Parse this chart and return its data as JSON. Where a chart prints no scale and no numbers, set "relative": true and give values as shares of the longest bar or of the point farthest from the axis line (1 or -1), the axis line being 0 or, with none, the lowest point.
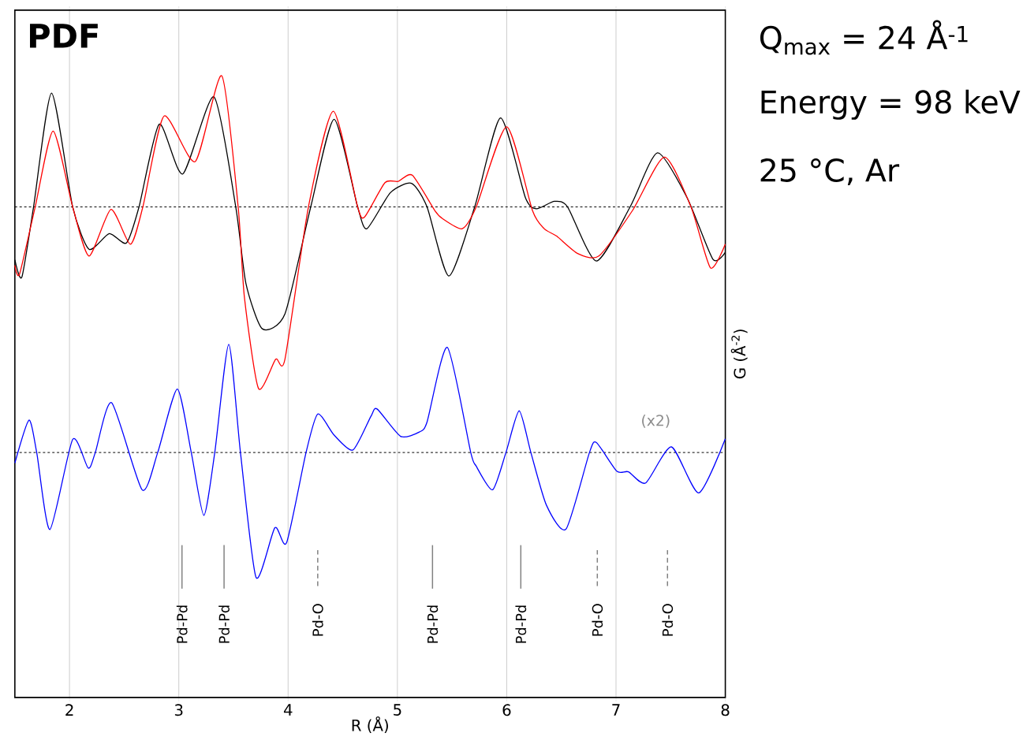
{
  "chart_data": {
    "type": "line",
    "title": "PDF",
    "xlabel": "R (Å)",
    "ylabel": "G (Å$^{-2}$)",
    "relative": true,
    "xlim": [
      1.5,
      8
    ],
    "xticks": [
      2,
      3,
      4,
      5,
      6,
      7,
      8
    ],
    "grid": "x",
    "annotations": [
      "Q$_{max}$ = 24 Å$^{-1}$",
      "Energy = 98 keV",
      "25 °C, Ar",
      "(x2)"
    ],
    "ref_lines": [
      {
        "axis": "y",
        "value": 0.789,
        "color": "#000000",
        "line_style": "dashed"
      },
      {
        "axis": "y",
        "value": 0.394,
        "color": "#000000",
        "line_style": "dashed"
      }
    ],
    "series": [
      {
        "color": "#000000",
        "x": [
          1.5,
          1.564,
          1.671,
          1.836,
          2.029,
          2.179,
          2.364,
          2.521,
          2.636,
          2.821,
          3.036,
          3.321,
          3.521,
          3.614,
          3.764,
          3.971,
          4.207,
          4.421,
          4.636,
          4.721,
          4.936,
          5.129,
          5.271,
          5.471,
          5.707,
          5.943,
          6.171,
          6.271,
          6.436,
          6.557,
          6.821,
          7.129,
          7.379,
          7.65,
          7.886,
          8.0
        ],
        "values": [
          0.704,
          0.676,
          0.789,
          0.972,
          0.789,
          0.721,
          0.746,
          0.731,
          0.789,
          0.922,
          0.842,
          0.966,
          0.789,
          0.666,
          0.593,
          0.617,
          0.789,
          0.93,
          0.789,
          0.754,
          0.812,
          0.827,
          0.789,
          0.678,
          0.789,
          0.932,
          0.804,
          0.786,
          0.798,
          0.789,
          0.702,
          0.789,
          0.876,
          0.804,
          0.705,
          0.716
        ]
      },
      {
        "color": "#ff0000",
        "x": [
          1.5,
          1.543,
          1.686,
          1.85,
          2.029,
          2.179,
          2.379,
          2.557,
          2.671,
          2.864,
          3.15,
          3.393,
          3.543,
          3.6,
          3.729,
          3.886,
          3.971,
          4.186,
          4.414,
          4.636,
          4.7,
          4.886,
          5.007,
          5.136,
          5.343,
          5.414,
          5.593,
          5.721,
          6.0,
          6.236,
          6.343,
          6.457,
          6.65,
          6.843,
          7.15,
          7.443,
          7.686,
          7.864,
          8.0
        ],
        "values": [
          0.695,
          0.681,
          0.789,
          0.911,
          0.789,
          0.71,
          0.785,
          0.729,
          0.789,
          0.935,
          0.862,
          1.0,
          0.789,
          0.644,
          0.497,
          0.544,
          0.544,
          0.789,
          0.943,
          0.789,
          0.773,
          0.828,
          0.83,
          0.84,
          0.783,
          0.77,
          0.754,
          0.789,
          0.918,
          0.783,
          0.754,
          0.742,
          0.714,
          0.71,
          0.783,
          0.869,
          0.789,
          0.691,
          0.729
        ]
      },
      {
        "color": "#0000ff",
        "x": [
          1.5,
          1.629,
          1.7,
          1.821,
          2.029,
          2.171,
          2.236,
          2.386,
          2.664,
          2.807,
          2.986,
          3.114,
          3.229,
          3.329,
          3.457,
          3.564,
          3.707,
          3.879,
          3.986,
          4.164,
          4.271,
          4.421,
          4.593,
          4.757,
          4.814,
          5.029,
          5.2,
          5.271,
          5.457,
          5.671,
          5.721,
          5.871,
          5.993,
          6.114,
          6.221,
          6.364,
          6.543,
          6.757,
          6.821,
          7.007,
          7.114,
          7.271,
          7.507,
          7.757,
          8.0
        ],
        "values": [
          0.377,
          0.446,
          0.394,
          0.27,
          0.415,
          0.369,
          0.394,
          0.474,
          0.334,
          0.394,
          0.496,
          0.394,
          0.293,
          0.394,
          0.568,
          0.394,
          0.193,
          0.273,
          0.249,
          0.394,
          0.456,
          0.422,
          0.398,
          0.452,
          0.464,
          0.42,
          0.427,
          0.443,
          0.563,
          0.394,
          0.372,
          0.334,
          0.394,
          0.461,
          0.394,
          0.309,
          0.271,
          0.394,
          0.41,
          0.364,
          0.363,
          0.345,
          0.403,
          0.329,
          0.416
        ]
      },
      {
        "name": "Pd-Pd",
        "color": "#808080",
        "line_style": "solid",
        "x": [
          3.029,
          3.029
        ],
        "values": [
          0.245,
          0.175
        ]
      },
      {
        "name": "Pd-Pd",
        "color": "#808080",
        "line_style": "solid",
        "x": [
          3.414,
          3.414
        ],
        "values": [
          0.245,
          0.175
        ]
      },
      {
        "name": "Pd-O",
        "color": "#808080",
        "line_style": "dashed",
        "x": [
          4.271,
          4.271
        ],
        "values": [
          0.237,
          0.177
        ]
      },
      {
        "name": "Pd-Pd",
        "color": "#808080",
        "line_style": "solid",
        "x": [
          5.321,
          5.321
        ],
        "values": [
          0.245,
          0.175
        ]
      },
      {
        "name": "Pd-Pd",
        "color": "#808080",
        "line_style": "solid",
        "x": [
          6.129,
          6.129
        ],
        "values": [
          0.245,
          0.175
        ]
      },
      {
        "name": "Pd-O",
        "color": "#808080",
        "line_style": "dashed",
        "x": [
          6.829,
          6.829
        ],
        "values": [
          0.237,
          0.177
        ]
      },
      {
        "name": "Pd-O",
        "color": "#808080",
        "line_style": "dashed",
        "x": [
          7.471,
          7.471
        ],
        "values": [
          0.237,
          0.177
        ]
      }
    ]
  }
}
